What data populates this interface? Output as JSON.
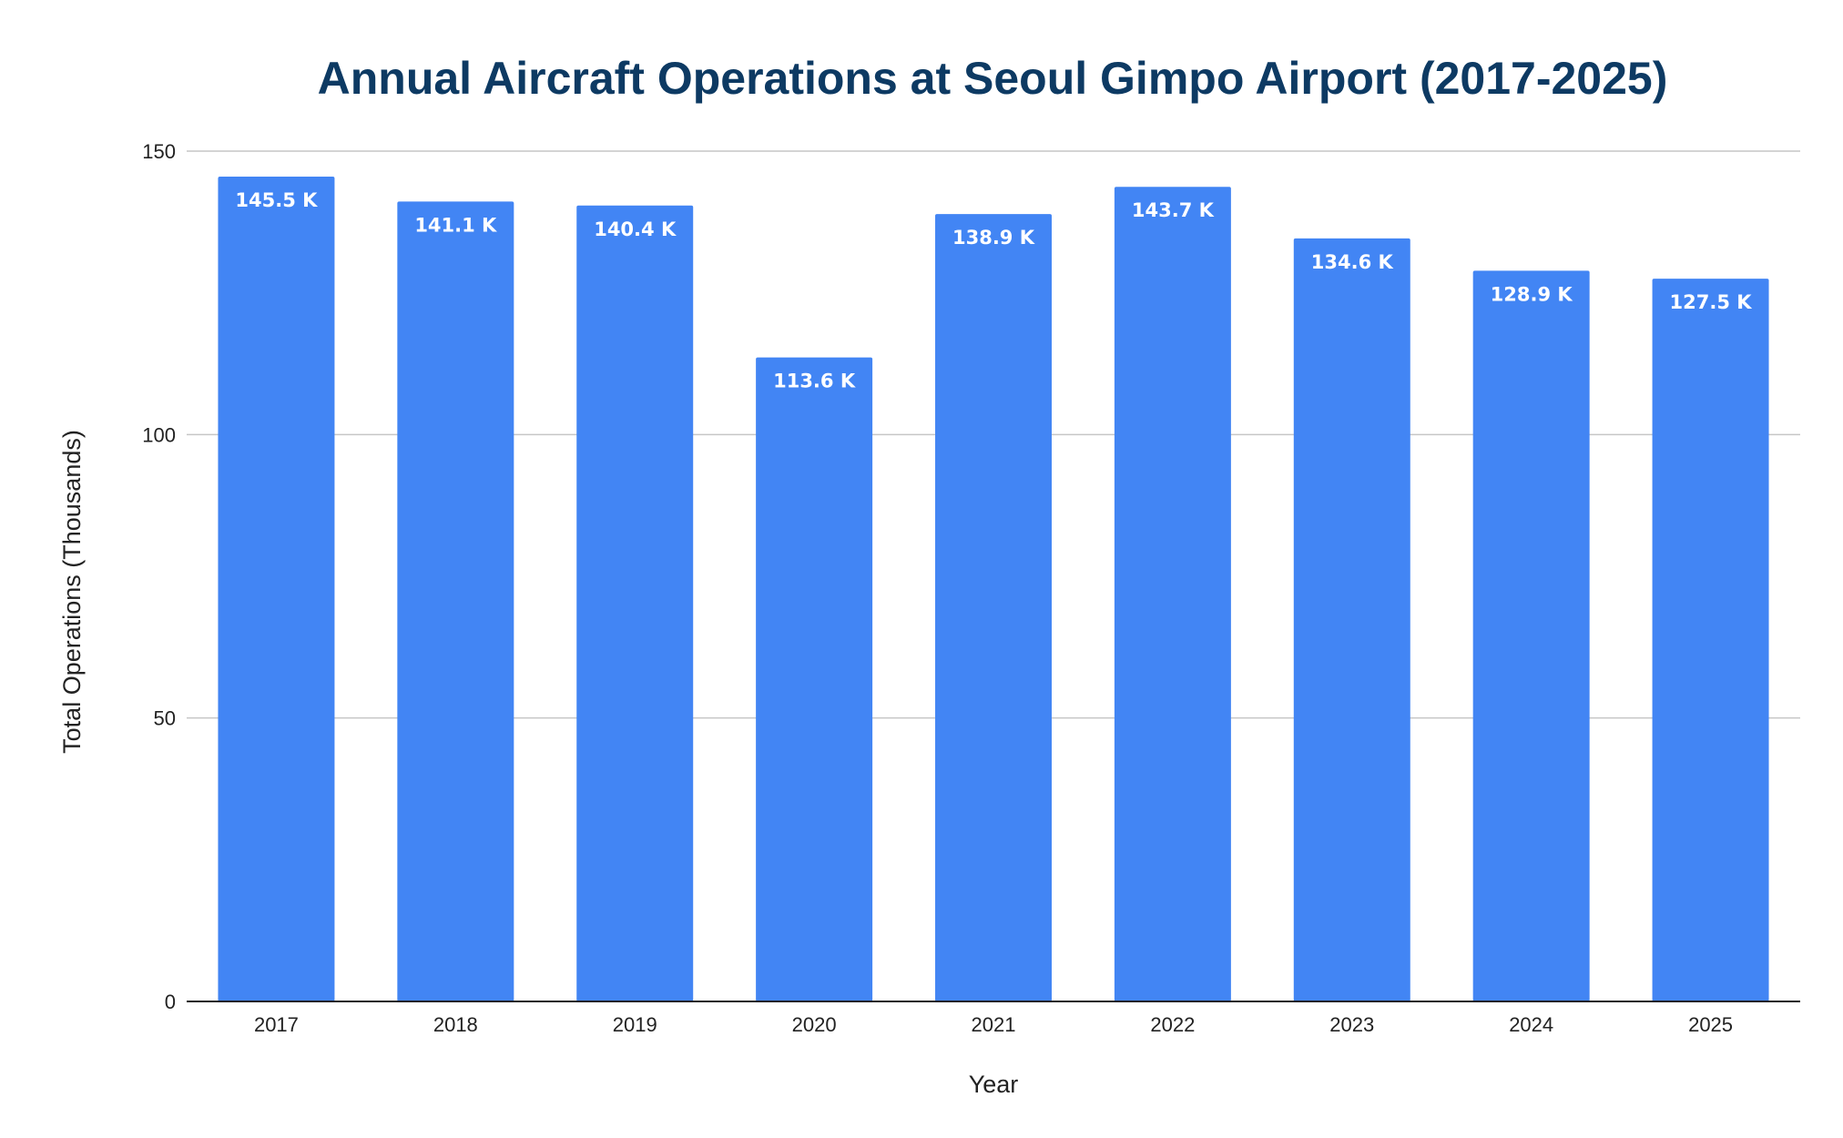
{
  "chart_data": {
    "type": "bar",
    "title": "Annual Aircraft Operations at Seoul Gimpo Airport (2017-2025)",
    "xlabel": "Year",
    "ylabel": "Total Operations (Thousands)",
    "ylim": [
      0,
      150
    ],
    "yticks": [
      "0",
      "50",
      "100",
      "150"
    ],
    "grid": true,
    "categories": [
      "2017",
      "2018",
      "2019",
      "2020",
      "2021",
      "2022",
      "2023",
      "2024",
      "2025"
    ],
    "values": [
      145.5,
      141.1,
      140.4,
      113.6,
      138.9,
      143.7,
      134.6,
      128.9,
      127.5
    ],
    "data_labels": [
      "145.5 K",
      "141.1 K",
      "140.4 K",
      "113.6 K",
      "138.9 K",
      "143.7 K",
      "134.6 K",
      "128.9 K",
      "127.5 K"
    ],
    "bar_color": "#4285f4"
  }
}
